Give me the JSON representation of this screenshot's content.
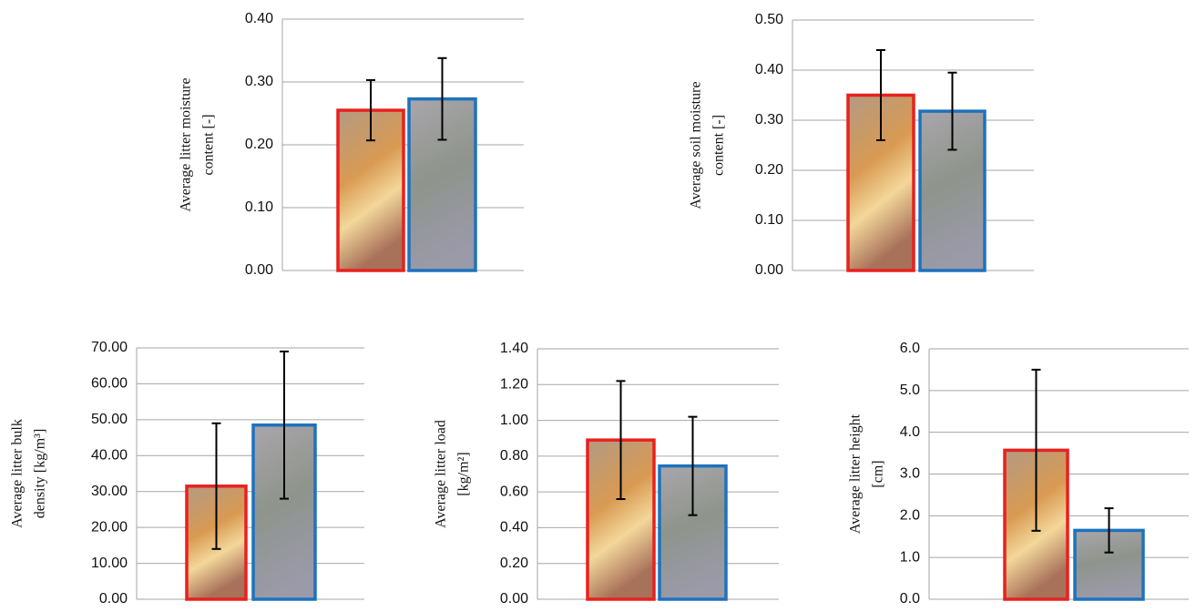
{
  "chart_data": [
    {
      "type": "bar",
      "ylabel": [
        "Average litter moisture",
        "content [-]"
      ],
      "categories": [
        null,
        null
      ],
      "values": [
        0.255,
        0.273
      ],
      "errors": [
        0.048,
        0.065
      ],
      "colors": [
        "#e8211f",
        "#1e72bd"
      ],
      "ylim": [
        0,
        0.4
      ],
      "yticks": [
        {
          "value": 0,
          "label": "0.00"
        },
        {
          "value": 0.1,
          "label": "0.10"
        },
        {
          "value": 0.2,
          "label": "0.20"
        },
        {
          "value": 0.3,
          "label": "0.30"
        },
        {
          "value": 0.4,
          "label": "0.40"
        }
      ],
      "grid": true
    },
    {
      "type": "bar",
      "ylabel": [
        "Average soil moisture",
        "content [-]"
      ],
      "categories": [
        null,
        null
      ],
      "values": [
        0.35,
        0.318
      ],
      "errors": [
        0.09,
        0.077
      ],
      "colors": [
        "#e8211f",
        "#1e72bd"
      ],
      "ylim": [
        0,
        0.5
      ],
      "yticks": [
        {
          "value": 0,
          "label": "0.00"
        },
        {
          "value": 0.1,
          "label": "0.10"
        },
        {
          "value": 0.2,
          "label": "0.20"
        },
        {
          "value": 0.3,
          "label": "0.30"
        },
        {
          "value": 0.4,
          "label": "0.40"
        },
        {
          "value": 0.5,
          "label": "0.50"
        }
      ],
      "grid": true
    },
    {
      "type": "bar",
      "ylabel": [
        "Average litter bulk",
        "density [kg/m³]"
      ],
      "categories": [
        null,
        null
      ],
      "values": [
        31.5,
        48.5
      ],
      "errors": [
        17.5,
        20.5
      ],
      "colors": [
        "#e8211f",
        "#1e72bd"
      ],
      "ylim": [
        0,
        70
      ],
      "yticks": [
        {
          "value": 0,
          "label": "0.00"
        },
        {
          "value": 10,
          "label": "10.00"
        },
        {
          "value": 20,
          "label": "20.00"
        },
        {
          "value": 30,
          "label": "30.00"
        },
        {
          "value": 40,
          "label": "40.00"
        },
        {
          "value": 50,
          "label": "50.00"
        },
        {
          "value": 60,
          "label": "60.00"
        },
        {
          "value": 70,
          "label": "70.00"
        }
      ],
      "grid": true
    },
    {
      "type": "bar",
      "ylabel": [
        "Average litter load",
        "[kg/m²]"
      ],
      "categories": [
        null,
        null
      ],
      "values": [
        0.89,
        0.745
      ],
      "errors": [
        0.33,
        0.275
      ],
      "colors": [
        "#e8211f",
        "#1e72bd"
      ],
      "ylim": [
        0,
        1.4
      ],
      "yticks": [
        {
          "value": 0,
          "label": "0.00"
        },
        {
          "value": 0.2,
          "label": "0.20"
        },
        {
          "value": 0.4,
          "label": "0.40"
        },
        {
          "value": 0.6,
          "label": "0.60"
        },
        {
          "value": 0.8,
          "label": "0.80"
        },
        {
          "value": 1,
          "label": "1.00"
        },
        {
          "value": 1.2,
          "label": "1.20"
        },
        {
          "value": 1.4,
          "label": "1.40"
        }
      ],
      "grid": true
    },
    {
      "type": "bar",
      "ylabel": [
        "Average litter height",
        "[cm]"
      ],
      "categories": [
        null,
        null
      ],
      "values": [
        3.57,
        1.65
      ],
      "errors": [
        1.93,
        0.53
      ],
      "colors": [
        "#e8211f",
        "#1e72bd"
      ],
      "ylim": [
        0,
        6
      ],
      "yticks": [
        {
          "value": 0,
          "label": "0.0"
        },
        {
          "value": 1,
          "label": "1.0"
        },
        {
          "value": 2,
          "label": "2.0"
        },
        {
          "value": 3,
          "label": "3.0"
        },
        {
          "value": 4,
          "label": "4.0"
        },
        {
          "value": 5,
          "label": "5.0"
        },
        {
          "value": 6,
          "label": "6.0"
        }
      ],
      "grid": true
    }
  ]
}
